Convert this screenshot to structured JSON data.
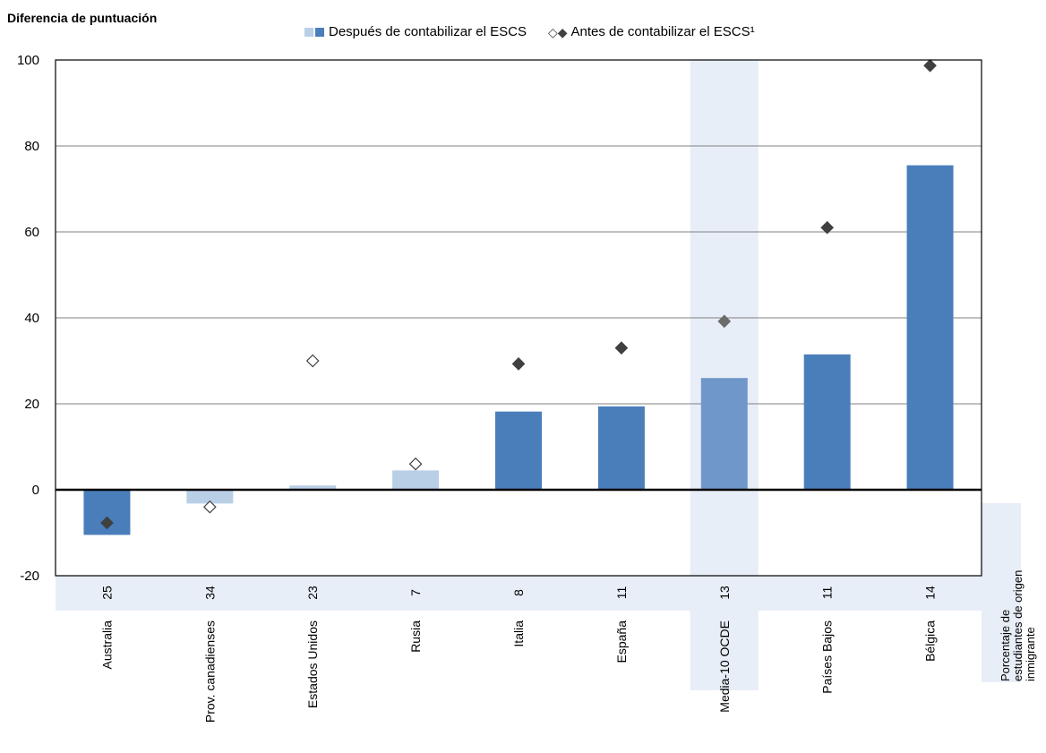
{
  "chart_data": {
    "type": "bar",
    "ylabel": "Diferencia de puntuación",
    "ylim": [
      -20,
      100
    ],
    "yticks": [
      -20,
      0,
      20,
      40,
      60,
      80,
      100
    ],
    "grid": true,
    "legend": {
      "placement": "top",
      "after_label": "Después de contabilizar el ESCS",
      "before_label": "Antes de contabilizar el ESCS¹"
    },
    "categories": [
      "Australia",
      "Prov. canadienses",
      "Estados Unidos",
      "Rusia",
      "Italia",
      "España",
      "Media-10 OCDE",
      "Países Bajos",
      "Bélgica"
    ],
    "series": [
      {
        "name": "Después de contabilizar el ESCS",
        "values": [
          -10.5,
          -3.2,
          1.0,
          4.5,
          18.2,
          19.4,
          26.0,
          31.5,
          75.5
        ]
      },
      {
        "name": "Antes de contabilizar el ESCS¹",
        "values": [
          -7.7,
          -4.0,
          30.0,
          6.0,
          29.3,
          33.0,
          39.2,
          61.0,
          98.7
        ]
      }
    ],
    "significant": [
      true,
      false,
      false,
      false,
      true,
      true,
      true,
      true,
      true
    ],
    "highlight_category": "Media-10 OCDE",
    "immigrant_share": [
      25,
      34,
      23,
      7,
      8,
      11,
      13,
      11,
      14
    ],
    "immigrant_label": "Porcentaje de estudiantes de origen inmigrante",
    "colors": {
      "bar_significant": "#4a7ebb",
      "bar_not_significant": "#b8cfe6",
      "bar_average": "#6f97c9",
      "diamond": "#404040",
      "highlight_band": "#e8eef7",
      "share_band": "#e8eef7",
      "grid": "#808080"
    }
  }
}
